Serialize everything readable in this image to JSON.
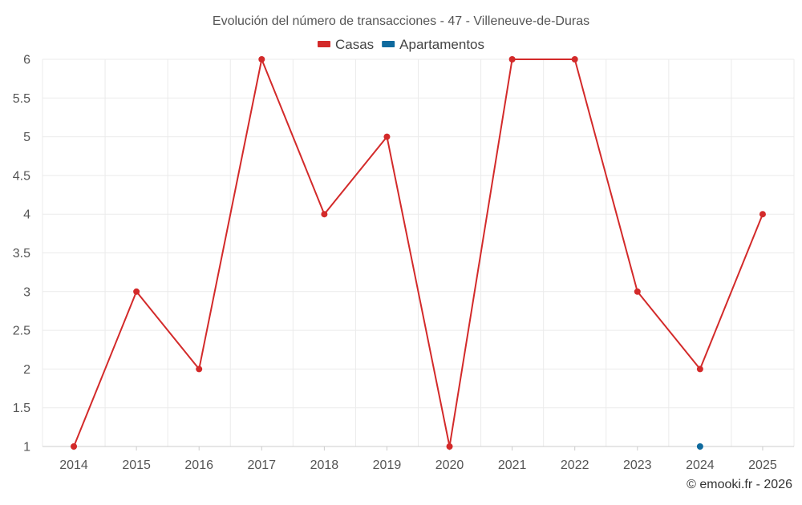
{
  "chart_data": {
    "type": "line",
    "title": "Evolución del número de transacciones - 47 - Villeneuve-de-Duras",
    "categories": [
      "2014",
      "2015",
      "2016",
      "2017",
      "2018",
      "2019",
      "2020",
      "2021",
      "2022",
      "2023",
      "2024",
      "2025"
    ],
    "series": [
      {
        "name": "Casas",
        "color": "#d32a2a",
        "values": [
          1,
          3,
          2,
          6,
          4,
          5,
          1,
          6,
          6,
          3,
          2,
          4
        ]
      },
      {
        "name": "Apartamentos",
        "color": "#0f6a9e",
        "values": [
          null,
          null,
          null,
          null,
          null,
          null,
          null,
          null,
          null,
          null,
          1,
          null
        ]
      }
    ],
    "y_ticks": [
      "1",
      "1.5",
      "2",
      "2.5",
      "3",
      "3.5",
      "4",
      "4.5",
      "5",
      "5.5",
      "6"
    ],
    "ylim": [
      1,
      6
    ],
    "xlabel": "",
    "ylabel": "",
    "legend_position": "top-center",
    "grid": true
  },
  "footer": {
    "credit": "© emooki.fr - 2026"
  },
  "colors": {
    "grid": "#ebebeb",
    "axis_text": "#555555",
    "title_text": "#555555"
  }
}
